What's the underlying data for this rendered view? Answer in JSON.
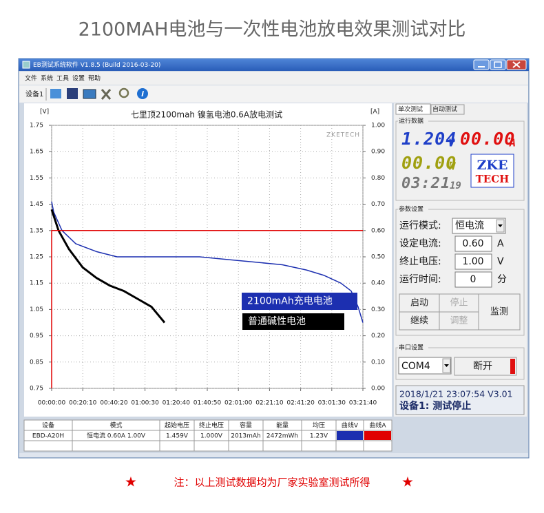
{
  "page_title": "2100MAH电池与一次性电池放电效果测试对比",
  "footer": {
    "star": "★",
    "note": "注：以上测试数据均为厂家实验室测试所得"
  },
  "window": {
    "title": "EB测试系统软件 V1.8.5 (Build 2016-03-20)",
    "menu": [
      "文件",
      "系统",
      "工具",
      "设置",
      "帮助"
    ],
    "device_label": "设备1"
  },
  "chart_data": {
    "type": "line",
    "title": "七里顶2100mah 镍氢电池0.6A放电测试",
    "y_label": "[V]",
    "y2_label": "[A]",
    "watermark": "ZKETECH",
    "xlim": [
      0,
      12100
    ],
    "xticks": [
      {
        "value": 0,
        "label": "00:00:00"
      },
      {
        "value": 1210,
        "label": "00:20:10"
      },
      {
        "value": 2420,
        "label": "00:40:20"
      },
      {
        "value": 3630,
        "label": "01:00:30"
      },
      {
        "value": 4840,
        "label": "01:20:40"
      },
      {
        "value": 6050,
        "label": "01:40:50"
      },
      {
        "value": 7260,
        "label": "02:01:00"
      },
      {
        "value": 8470,
        "label": "02:21:10"
      },
      {
        "value": 9680,
        "label": "02:41:20"
      },
      {
        "value": 10890,
        "label": "03:01:30"
      },
      {
        "value": 12100,
        "label": "03:21:40"
      }
    ],
    "ylim": [
      0.75,
      1.75
    ],
    "yticks": [
      1.75,
      1.65,
      1.55,
      1.45,
      1.35,
      1.25,
      1.15,
      1.05,
      0.95,
      0.85,
      0.75
    ],
    "y2lim": [
      0,
      1
    ],
    "y2ticks": [
      {
        "value": 1,
        "label": "1.00"
      },
      {
        "value": 0.9,
        "label": "0.90"
      },
      {
        "value": 0.8,
        "label": "0.80"
      },
      {
        "value": 0.7,
        "label": "0.70"
      },
      {
        "value": 0.6,
        "label": "0.60"
      },
      {
        "value": 0.5,
        "label": "0.50"
      },
      {
        "value": 0.4,
        "label": "0.40"
      },
      {
        "value": 0.3,
        "label": "0.30"
      },
      {
        "value": 0.2,
        "label": "0.20"
      },
      {
        "value": 0.1,
        "label": "0.10"
      },
      {
        "value": 0,
        "label": "0.00"
      }
    ],
    "grid": true,
    "series": [
      {
        "name": "2100mAh充电电池",
        "color": "#1c2fb0",
        "x": [
          0,
          80,
          402,
          937,
          1740,
          2543,
          5756,
          6827,
          7898,
          8969,
          9905,
          10575,
          11244,
          11646,
          11913,
          12100
        ],
        "values": [
          1.46,
          1.42,
          1.35,
          1.3,
          1.27,
          1.25,
          1.25,
          1.24,
          1.23,
          1.22,
          1.2,
          1.18,
          1.15,
          1.12,
          1.06,
          1.0
        ]
      },
      {
        "name": "普通碱性电池",
        "color": "#000000",
        "x": [
          0,
          268,
          669,
          1205,
          1740,
          2275,
          2811,
          3346,
          3881,
          4390
        ],
        "values": [
          1.43,
          1.35,
          1.28,
          1.21,
          1.17,
          1.14,
          1.12,
          1.09,
          1.06,
          1.0
        ]
      },
      {
        "color": "#e00000",
        "axis": "y2",
        "x": [
          0,
          0,
          12100
        ],
        "values": [
          0,
          0.6,
          0.6
        ]
      }
    ]
  },
  "table": {
    "headers": [
      "设备",
      "模式",
      "起始电压",
      "终止电压",
      "容量",
      "能量",
      "均压",
      "曲线V",
      "曲线A"
    ],
    "rows": [
      [
        "EBD-A20H",
        "恒电流 0.60A 1.00V",
        "1.459V",
        "1.000V",
        "2013mAh",
        "2472mWh",
        "1.23V"
      ]
    ]
  },
  "panel": {
    "tabs": [
      "单次测试",
      "自动测试"
    ],
    "run_group": "运行数据",
    "voltage": "1.204",
    "voltage_unit": "V",
    "current": "00.00",
    "current_unit": "A",
    "power": "00.00",
    "power_unit": "W",
    "time_main": "03:21",
    "time_sec": "19",
    "logo_top": "ZKE",
    "logo_bottom": "TECH",
    "param_group": "参数设置",
    "params": [
      {
        "label": "运行模式:",
        "value": "恒电流"
      },
      {
        "label": "设定电流:",
        "value": "0.60",
        "unit": "A"
      },
      {
        "label": "终止电压:",
        "value": "1.00",
        "unit": "V"
      },
      {
        "label": "运行时间:",
        "value": "0",
        "unit": "分"
      }
    ],
    "buttons": [
      "启动",
      "停止",
      "继续",
      "调整",
      "监测"
    ],
    "port_group": "串口设置",
    "port": "COM4",
    "disconnect": "断开",
    "status_line1": "2018/1/21 23:07:54 V3.01",
    "status_line2": "设备1: 测试停止"
  }
}
